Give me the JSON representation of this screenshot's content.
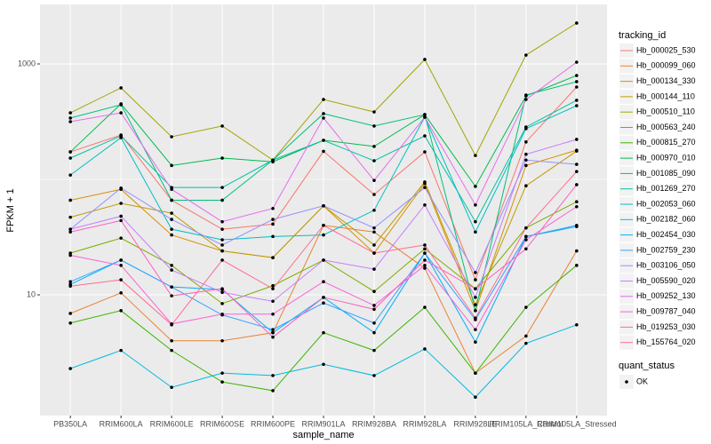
{
  "chart_data": {
    "type": "line",
    "x_label": "sample_name",
    "y_label": "FPKM + 1",
    "categories": [
      "PB350LA",
      "RRIM600LA",
      "RRIM600LE",
      "RRIM600SE",
      "RRIM600PE",
      "RRIM901LA",
      "RRIM928BA",
      "RRIM928LA",
      "RRIM928LE",
      "RRIM105LA_Control",
      "RRIM105LA_Stressed"
    ],
    "log_y": true,
    "ylim": [
      0.9,
      3275
    ],
    "yticks": [
      10,
      1000
    ],
    "y_minor_gridlines": [
      100
    ],
    "grid": true,
    "legend_title": "tracking_id",
    "legend_position": "right",
    "point_legend_title": "quant_status",
    "point_legend_label": "OK",
    "point_color": "#000000",
    "series": [
      {
        "name": "Hb_000025_530",
        "color": "#F8766D",
        "values": [
          173,
          242,
          66,
          37,
          41,
          175,
          74,
          173,
          13.5,
          211,
          631
        ]
      },
      {
        "name": "Hb_000099_060",
        "color": "#EA8331",
        "values": [
          6.9,
          10.4,
          4.0,
          4.0,
          4.7,
          40,
          35,
          17,
          2.1,
          4.4,
          24
        ]
      },
      {
        "name": "Hb_000134_330",
        "color": "#D89000",
        "values": [
          66,
          82,
          33,
          24,
          21,
          59,
          23,
          92,
          7.3,
          132,
          179
        ]
      },
      {
        "name": "Hb_000144_110",
        "color": "#C09B00",
        "values": [
          47,
          62,
          51,
          24,
          21,
          59,
          27,
          95,
          8.2,
          88,
          176
        ]
      },
      {
        "name": "Hb_000510_110",
        "color": "#A3A500",
        "values": [
          377,
          620,
          234,
          290,
          147,
          492,
          384,
          1093,
          161,
          1193,
          2260
        ]
      },
      {
        "name": "Hb_000563_240",
        "color": "#7CAE00",
        "values": [
          23,
          31,
          18,
          8.4,
          12,
          20,
          10.7,
          25,
          11.3,
          38,
          64
        ]
      },
      {
        "name": "Hb_000815_270",
        "color": "#39B600",
        "values": [
          5.7,
          7.3,
          3.3,
          1.76,
          1.48,
          4.7,
          3.3,
          7.8,
          2.1,
          7.8,
          18
        ]
      },
      {
        "name": "Hb_000970_010",
        "color": "#00BB4E",
        "values": [
          173,
          451,
          132,
          153,
          142,
          218,
          193,
          364,
          87,
          528,
          794
        ]
      },
      {
        "name": "Hb_001085_090",
        "color": "#00BF7D",
        "values": [
          340,
          443,
          66,
          66,
          147,
          371,
          290,
          364,
          7.3,
          538,
          702
        ]
      },
      {
        "name": "Hb_001269_270",
        "color": "#00C1A3",
        "values": [
          153,
          238,
          85,
          85,
          147,
          218,
          145,
          238,
          43,
          284,
          484
        ]
      },
      {
        "name": "Hb_002053_060",
        "color": "#00BFC4",
        "values": [
          109,
          230,
          37,
          30,
          32,
          33,
          54,
          346,
          35,
          275,
          435
        ]
      },
      {
        "name": "Hb_002182_060",
        "color": "#00BAE0",
        "values": [
          2.3,
          3.3,
          1.58,
          2.1,
          2.0,
          2.5,
          2.0,
          3.4,
          1.3,
          3.8,
          5.5
        ]
      },
      {
        "name": "Hb_002454_030",
        "color": "#00B0F6",
        "values": [
          12.3,
          20,
          11.7,
          11.1,
          4.7,
          9.5,
          4.7,
          23,
          3.9,
          32,
          39
        ]
      },
      {
        "name": "Hb_002759_230",
        "color": "#35A2FF",
        "values": [
          13,
          20,
          11.7,
          6.7,
          5.0,
          8.5,
          5.7,
          23,
          6.1,
          32,
          40
        ]
      },
      {
        "name": "Hb_003106_050",
        "color": "#9590FF",
        "values": [
          37,
          84,
          45,
          27,
          45,
          59,
          38,
          85,
          15.6,
          147,
          135
        ]
      },
      {
        "name": "Hb_005590_020",
        "color": "#C77CFF",
        "values": [
          37,
          48,
          16.4,
          10.5,
          8.8,
          20,
          16.7,
          60,
          9.5,
          165,
          222
        ]
      },
      {
        "name": "Hb_009252_130",
        "color": "#E76BF3",
        "values": [
          316,
          377,
          82,
          43,
          56,
          340,
          98,
          346,
          60,
          492,
          1036
        ]
      },
      {
        "name": "Hb_009787_040",
        "color": "#FA62DB",
        "values": [
          22,
          18,
          5.6,
          6.8,
          6.8,
          13,
          8.1,
          18,
          5.0,
          30,
          58
        ]
      },
      {
        "name": "Hb_019253_030",
        "color": "#FF62BC",
        "values": [
          35,
          44,
          9.8,
          11.3,
          4.3,
          9.5,
          7.5,
          20,
          11.3,
          25,
          90
        ]
      },
      {
        "name": "Hb_155764_020",
        "color": "#FF6C91",
        "values": [
          11.9,
          13.5,
          5.5,
          20,
          11.3,
          40,
          23,
          27,
          6.3,
          38,
          117
        ]
      }
    ]
  }
}
